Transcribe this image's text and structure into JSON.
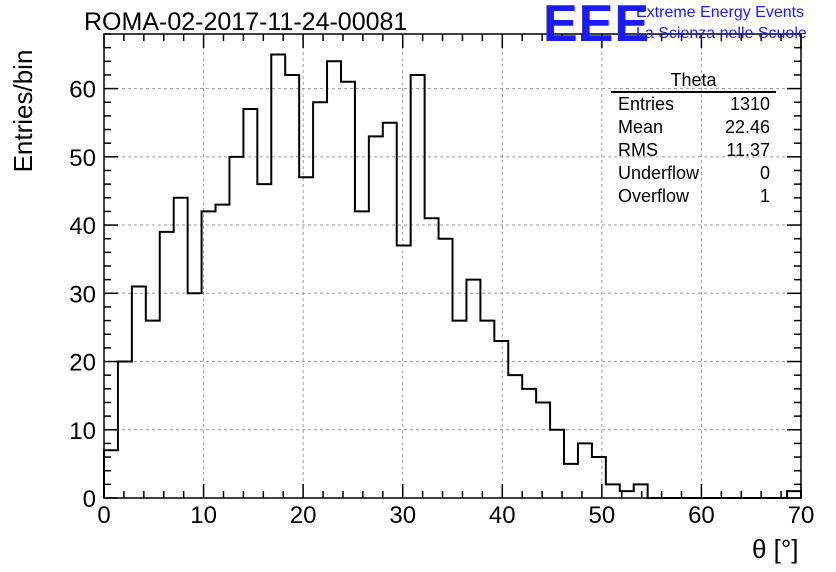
{
  "title": "ROMA-02-2017-11-24-00081",
  "logo": {
    "mark": "EEE",
    "line1": "Extreme Energy Events",
    "line2": "La Scienza nelle Scuole",
    "color": "#1a1aff"
  },
  "stats": {
    "title": "Theta",
    "rows": [
      {
        "label": "Entries",
        "value": "1310"
      },
      {
        "label": "Mean",
        "value": "22.46"
      },
      {
        "label": "RMS",
        "value": "11.37"
      },
      {
        "label": "Underflow",
        "value": "0"
      },
      {
        "label": "Overflow",
        "value": "1"
      }
    ]
  },
  "chart_data": {
    "type": "bar",
    "histogram": true,
    "title": "ROMA-02-2017-11-24-00081",
    "xlabel": "θ [°]",
    "ylabel": "Entries/bin",
    "xlim": [
      0,
      70
    ],
    "ylim": [
      0,
      68
    ],
    "bin_width": 1.4,
    "bin_edges_start": 0,
    "values": [
      7,
      20,
      31,
      26,
      39,
      44,
      30,
      42,
      43,
      50,
      57,
      46,
      65,
      62,
      47,
      58,
      64,
      61,
      42,
      53,
      55,
      37,
      62,
      41,
      38,
      26,
      32,
      26,
      23,
      18,
      16,
      14,
      10,
      5,
      8,
      6,
      2,
      1,
      2,
      0,
      0,
      0,
      0,
      0,
      0,
      0,
      0,
      0,
      0,
      1
    ],
    "xticks": [
      0,
      10,
      20,
      30,
      40,
      50,
      60,
      70
    ],
    "yticks": [
      0,
      10,
      20,
      30,
      40,
      50,
      60
    ],
    "grid": true,
    "legend": "top-right"
  }
}
